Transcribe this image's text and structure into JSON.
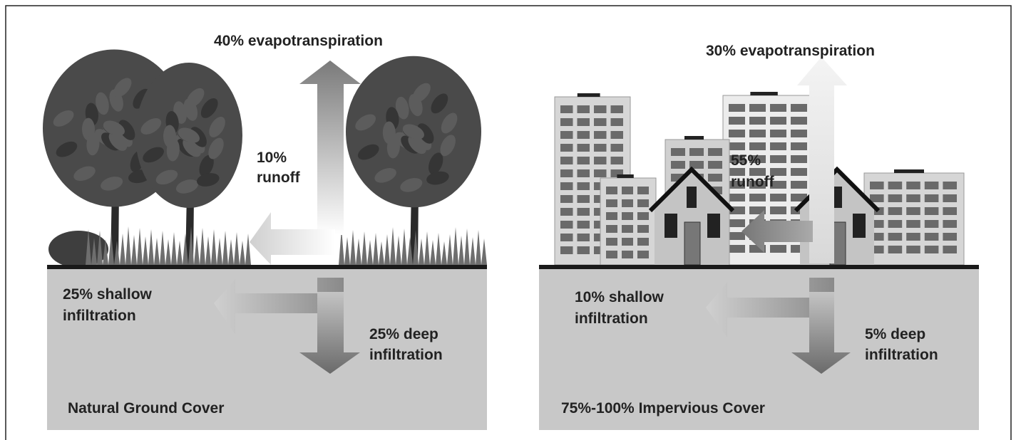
{
  "panels": [
    {
      "evapotranspiration": "40% evapotranspiration",
      "runoff": [
        "10%",
        "runoff"
      ],
      "shallow": [
        "25% shallow",
        "infiltration"
      ],
      "deep": [
        "25% deep",
        "infiltration"
      ],
      "caption": "Natural Ground Cover"
    },
    {
      "evapotranspiration": "30% evapotranspiration",
      "runoff": [
        "55%",
        "runoff"
      ],
      "shallow": [
        "10% shallow",
        "infiltration"
      ],
      "deep": [
        "5% deep",
        "infiltration"
      ],
      "caption": "75%-100% Impervious Cover"
    }
  ]
}
